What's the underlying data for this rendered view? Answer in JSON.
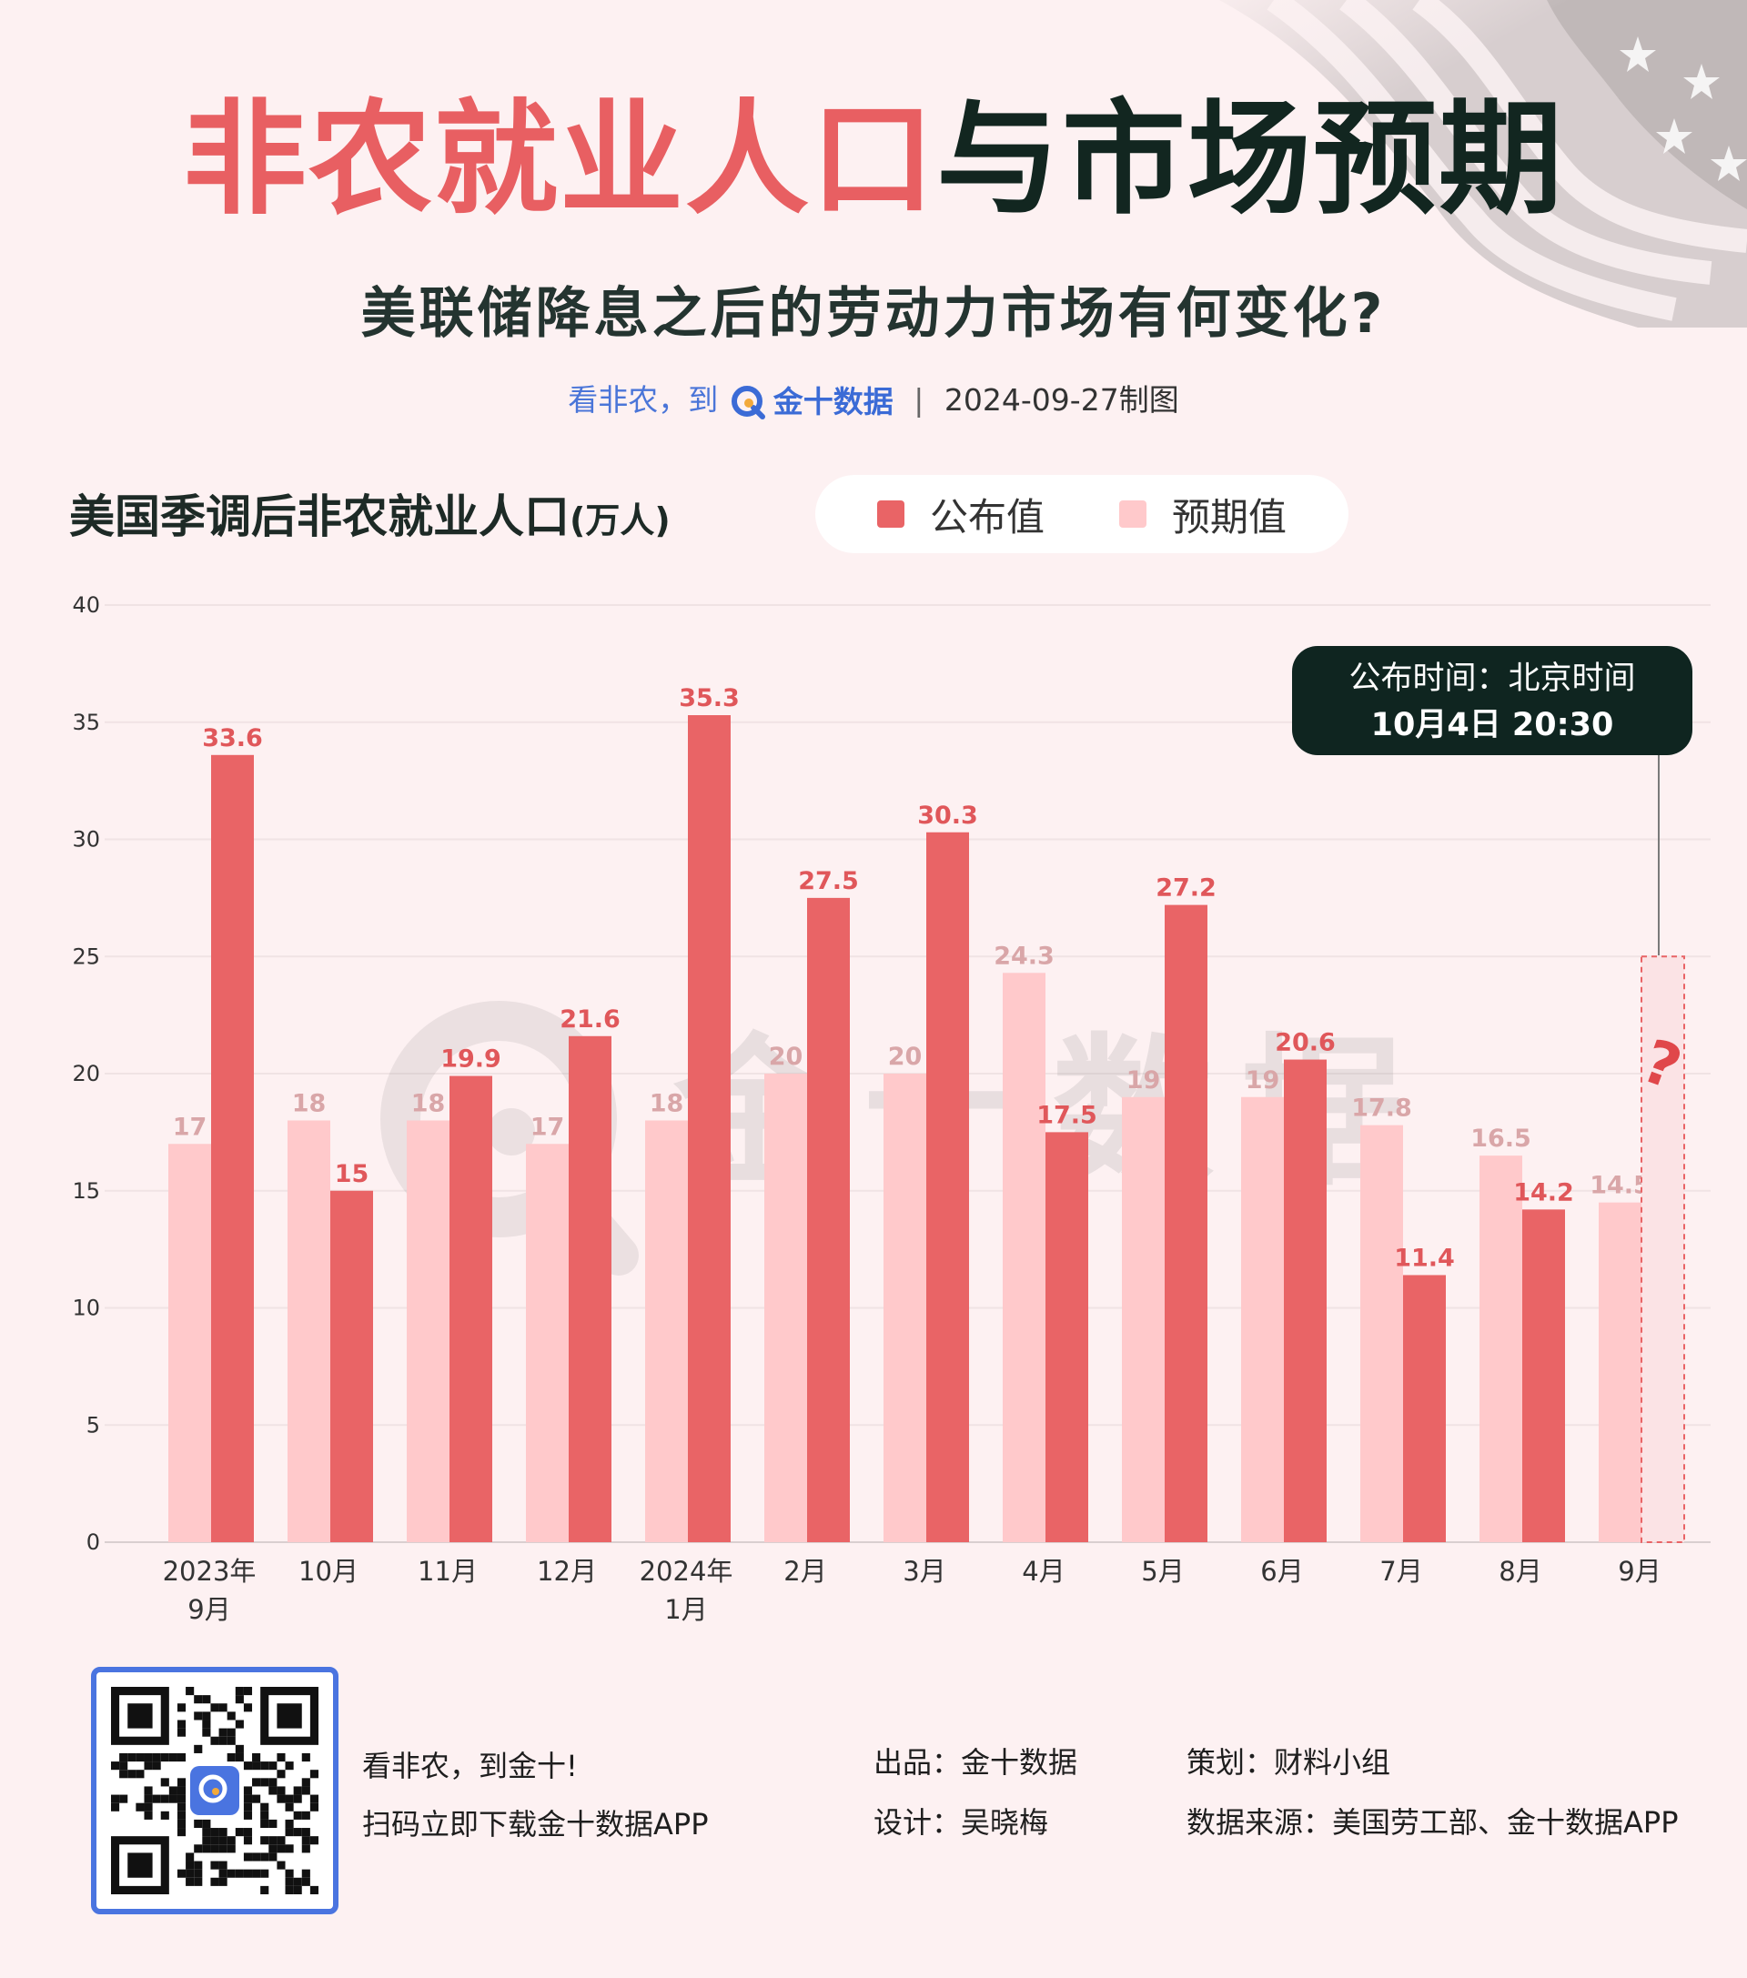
{
  "header": {
    "title_red": "非农就业人口",
    "title_dark": "与市场预期",
    "subtitle": "美联储降息之后的劳动力市场有何变化?",
    "byline_prefix": "看非农，到",
    "byline_brand": "金十数据",
    "byline_date": "2024-09-27制图"
  },
  "chart_header": {
    "title": "美国季调后非农就业人口",
    "unit": "(万人)"
  },
  "watermark": "金十数据",
  "colors": {
    "published": "#e96466",
    "expected": "#ffc9cb",
    "title_red": "#e85f62",
    "dark": "#122620",
    "label_expected": "#d9a6a8"
  },
  "release_callout": {
    "line1": "公布时间：北京时间",
    "line2": "10月4日 20:30"
  },
  "pending_marker": "?",
  "chart_data": {
    "type": "bar",
    "categories": [
      [
        "2023年",
        "9月"
      ],
      [
        "10月"
      ],
      [
        "11月"
      ],
      [
        "12月"
      ],
      [
        "2024年",
        "1月"
      ],
      [
        "2月"
      ],
      [
        "3月"
      ],
      [
        "4月"
      ],
      [
        "5月"
      ],
      [
        "6月"
      ],
      [
        "7月"
      ],
      [
        "8月"
      ],
      [
        "9月"
      ]
    ],
    "series": [
      {
        "name": "预期值",
        "values": [
          17,
          18,
          18,
          17,
          18,
          20,
          20,
          24.3,
          19,
          19,
          17.8,
          16.5,
          14.5
        ]
      },
      {
        "name": "公布值",
        "values": [
          33.6,
          15,
          19.9,
          21.6,
          35.3,
          27.5,
          30.3,
          17.5,
          27.2,
          20.6,
          11.4,
          14.2,
          null
        ]
      }
    ],
    "ylim": [
      0,
      40
    ],
    "yticks": [
      0,
      5,
      10,
      15,
      20,
      25,
      30,
      35,
      40
    ],
    "grid": true,
    "legend_position": "top-right"
  },
  "footer": {
    "slogan": "看非农，到金十!",
    "download": "扫码立即下载金十数据APP",
    "producer": "出品：金十数据",
    "designer": "设计：吴晓梅",
    "planner": "策划：财料小组",
    "source": "数据来源：美国劳工部、金十数据APP"
  }
}
